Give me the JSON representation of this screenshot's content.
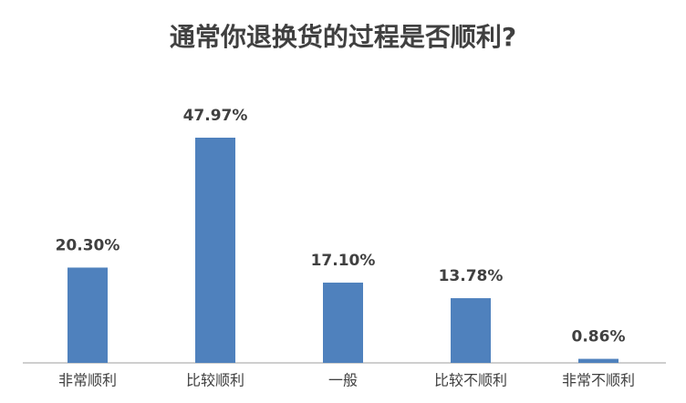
{
  "chart_data": {
    "type": "bar",
    "title": "通常你退换货的过程是否顺利?",
    "categories": [
      "非常顺利",
      "比较顺利",
      "一般",
      "比较不顺利",
      "非常不顺利"
    ],
    "values": [
      20.3,
      47.97,
      17.1,
      13.78,
      0.86
    ],
    "value_labels": [
      "20.30%",
      "47.97%",
      "17.10%",
      "13.78%",
      "0.86%"
    ],
    "color": "#4f81bd"
  }
}
